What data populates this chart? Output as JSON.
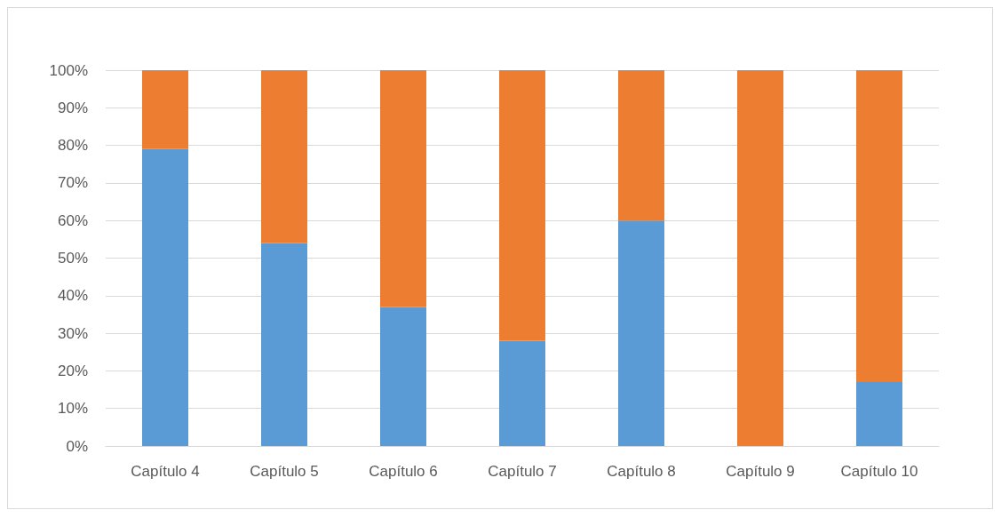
{
  "chart_data": {
    "type": "bar",
    "stacked": true,
    "categories": [
      "Capítulo 4",
      "Capítulo 5",
      "Capítulo 6",
      "Capítulo 7",
      "Capítulo 8",
      "Capítulo 9",
      "Capítulo 10"
    ],
    "series": [
      {
        "color": "#5b9bd5",
        "values": [
          79,
          54,
          37,
          28,
          60,
          0,
          17
        ]
      },
      {
        "color": "#ed7d31",
        "values": [
          21,
          46,
          63,
          72,
          40,
          100,
          83
        ]
      }
    ],
    "ylim": [
      0,
      100
    ],
    "yticks": [
      {
        "value": 0,
        "label": "0%"
      },
      {
        "value": 10,
        "label": "10%"
      },
      {
        "value": 20,
        "label": "20%"
      },
      {
        "value": 30,
        "label": "30%"
      },
      {
        "value": 40,
        "label": "40%"
      },
      {
        "value": 50,
        "label": "50%"
      },
      {
        "value": 60,
        "label": "60%"
      },
      {
        "value": 70,
        "label": "70%"
      },
      {
        "value": 80,
        "label": "80%"
      },
      {
        "value": 90,
        "label": "90%"
      },
      {
        "value": 100,
        "label": "100%"
      }
    ],
    "grid": "y"
  }
}
